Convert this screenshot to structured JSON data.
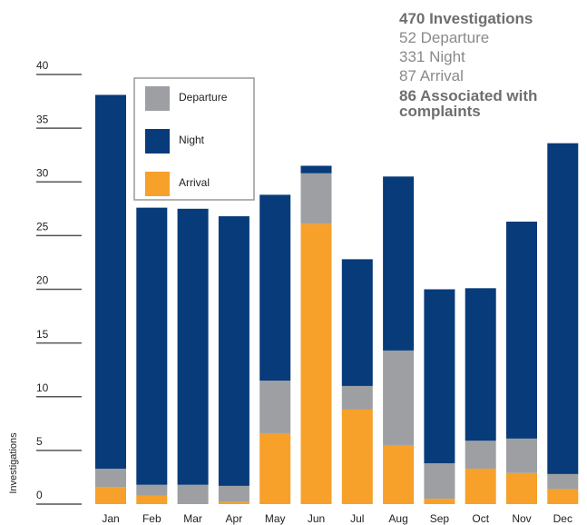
{
  "chart_data": {
    "type": "stacked_bar",
    "y_label": "Investigations",
    "summary": [
      "470 Investigations",
      "52 Departure",
      "331 Night",
      "87 Arrival",
      "86 Associated with complaints"
    ],
    "categories": [
      "Jan",
      "Feb",
      "Mar",
      "Apr",
      "May",
      "Jun",
      "Jul",
      "Aug",
      "Sep",
      "Oct",
      "Nov",
      "Dec"
    ],
    "series": [
      {
        "name": "Arrival",
        "color": "#f7a02a",
        "values": [
          1.6,
          0.8,
          0,
          0.2,
          6.6,
          26.1,
          8.8,
          5.5,
          0.5,
          3.3,
          2.9,
          1.4
        ]
      },
      {
        "name": "Departure",
        "color": "#9d9fa2",
        "values": [
          1.7,
          1,
          1.8,
          1.5,
          4.9,
          4.7,
          2.2,
          8.8,
          3.3,
          2.6,
          3.2,
          1.4
        ]
      },
      {
        "name": "Night",
        "color": "#073b7a",
        "values": [
          34.8,
          25.8,
          25.7,
          25.1,
          17.3,
          0.7,
          11.8,
          16.2,
          16.2,
          14.2,
          20.2,
          30.8
        ]
      }
    ],
    "legend_order": [
      1,
      2,
      0
    ],
    "ylim": [
      0,
      40
    ],
    "yticks": [
      0,
      5,
      10,
      15,
      20,
      25,
      30,
      35,
      40
    ]
  }
}
